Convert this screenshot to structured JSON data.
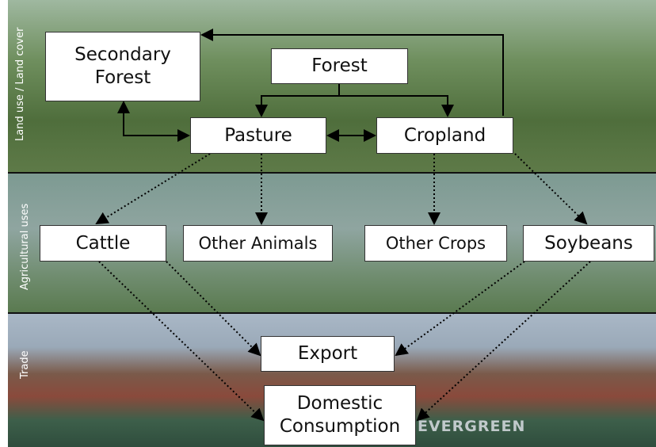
{
  "bands": [
    "Land use / Land cover",
    "Agricultural uses",
    "Trade"
  ],
  "nodes": [
    {
      "id": "secondary",
      "label": "Secondary Forest"
    },
    {
      "id": "forest",
      "label": "Forest"
    },
    {
      "id": "pasture",
      "label": "Pasture"
    },
    {
      "id": "cropland",
      "label": "Cropland"
    },
    {
      "id": "cattle",
      "label": "Cattle"
    },
    {
      "id": "animals",
      "label": "Other Animals"
    },
    {
      "id": "crops",
      "label": "Other Crops"
    },
    {
      "id": "soy",
      "label": "Soybeans"
    },
    {
      "id": "export",
      "label": "Export"
    },
    {
      "id": "domestic",
      "label": "Domestic Consumption"
    }
  ],
  "ship_text": "EVERGREEN"
}
